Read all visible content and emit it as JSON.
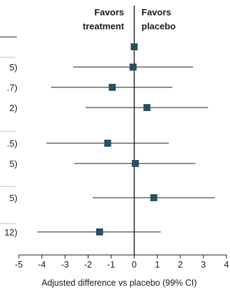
{
  "chart_data": {
    "type": "scatter",
    "subtype": "forest-plot",
    "xlabel": "Adjusted difference vs placebo (99% CI)",
    "xlim": [
      -5,
      4
    ],
    "x_ticks": [
      "-5",
      "-4",
      "-3",
      "-2",
      "-1",
      "0",
      "1",
      "2",
      "3",
      "4"
    ],
    "favors_left": [
      "Favors",
      "treatment"
    ],
    "favors_right": [
      "Favors",
      "placebo"
    ],
    "left_text_fragments": [
      "5)",
      ".7)",
      "2)",
      ".5)",
      "5)",
      "5)",
      "12)"
    ],
    "rows": [
      {
        "label": "",
        "estimate": 0.0,
        "ci_low": 0.0,
        "ci_high": 0.0
      },
      {
        "label": "5)",
        "estimate": -0.05,
        "ci_low": -2.65,
        "ci_high": 2.55
      },
      {
        "label": ".7)",
        "estimate": -0.95,
        "ci_low": -3.6,
        "ci_high": 1.65
      },
      {
        "label": "2)",
        "estimate": 0.55,
        "ci_low": -2.1,
        "ci_high": 3.2
      },
      {
        "label": ".5)",
        "estimate": -1.15,
        "ci_low": -3.8,
        "ci_high": 1.5
      },
      {
        "label": "5)",
        "estimate": 0.05,
        "ci_low": -2.6,
        "ci_high": 2.65
      },
      {
        "label": "5)",
        "estimate": 0.85,
        "ci_low": -1.8,
        "ci_high": 3.5
      },
      {
        "label": "12)",
        "estimate": -1.5,
        "ci_low": -4.2,
        "ci_high": 1.15
      }
    ],
    "marker_color": "#2b4f5e",
    "line_color": "#1a1a1a"
  }
}
